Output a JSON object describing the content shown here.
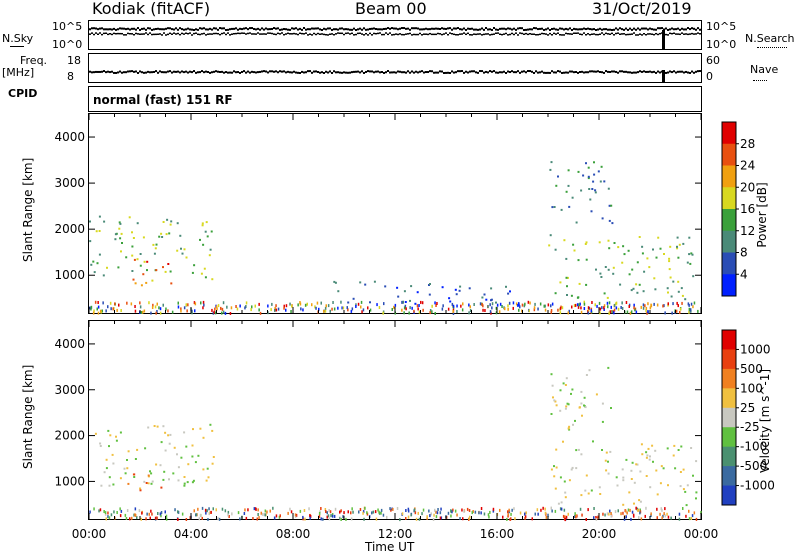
{
  "header": {
    "station": "Kodiak (fitACF)",
    "beam": "Beam 00",
    "date": "31/Oct/2019"
  },
  "side_labels": {
    "nsky": "N.Sky",
    "nsky_hi": "10^5",
    "nsky_lo": "10^0",
    "nsearch": "N.Search",
    "nsearch_hi": "10^5",
    "nsearch_lo": "10^0",
    "freq": "Freq.",
    "freq_unit": "[MHz]",
    "freq_hi": "18",
    "freq_lo": "8",
    "nave": "Nave",
    "nave_hi": "60",
    "nave_lo": "0",
    "cpid": "CPID",
    "mode": "normal (fast) 151 RF"
  },
  "chart_data": [
    {
      "type": "heatmap",
      "name": "power",
      "ylabel": "Slant Range [km]",
      "ylim": [
        180,
        4500
      ],
      "yticks": [
        1000,
        2000,
        3000,
        4000
      ],
      "colorbar_label": "Power [dB]",
      "colorbar_ticks": [
        "28",
        "24",
        "20",
        "16",
        "12",
        "8",
        "4"
      ],
      "colors": [
        "#0020ff",
        "#2a4db5",
        "#4a8a78",
        "#3aa03a",
        "#d8d820",
        "#f0a010",
        "#e85010",
        "#e00000"
      ],
      "regions": [
        {
          "t0": 0.0,
          "t1": 5.0,
          "r0": 900,
          "r1": 2300,
          "level": 3
        },
        {
          "t0": 1.5,
          "t1": 3.2,
          "r0": 800,
          "r1": 1400,
          "level": 6
        },
        {
          "t0": 18.0,
          "t1": 23.8,
          "r0": 500,
          "r1": 1900,
          "level": 3
        },
        {
          "t0": 18.0,
          "t1": 20.5,
          "r0": 2100,
          "r1": 3500,
          "level": 2
        },
        {
          "t0": 9.5,
          "t1": 16.5,
          "r0": 400,
          "r1": 900,
          "level": 1
        }
      ]
    },
    {
      "type": "heatmap",
      "name": "velocity",
      "ylabel": "Slant Range [km]",
      "ylim": [
        180,
        4500
      ],
      "yticks": [
        1000,
        2000,
        3000,
        4000
      ],
      "colorbar_label": "Velocity [m s^-1]",
      "colorbar_ticks": [
        "1000",
        "500",
        "100",
        "25",
        "-25",
        "-100",
        "-500",
        "-1000"
      ],
      "colors": [
        "#2040c0",
        "#3a6aa0",
        "#4a9070",
        "#60c040",
        "#c8c8c0",
        "#f0c040",
        "#f08020",
        "#e84010",
        "#e00000"
      ],
      "regions": [
        {
          "t0": 0.0,
          "t1": 5.0,
          "r0": 900,
          "r1": 2300,
          "level": 4
        },
        {
          "t0": 1.5,
          "t1": 3.0,
          "r0": 800,
          "r1": 1400,
          "level": 6
        },
        {
          "t0": 18.0,
          "t1": 23.8,
          "r0": 500,
          "r1": 1900,
          "level": 4
        },
        {
          "t0": 18.0,
          "t1": 20.5,
          "r0": 2100,
          "r1": 3500,
          "level": 4
        }
      ]
    }
  ],
  "xaxis": {
    "label": "Time UT",
    "ticks": [
      "00:00",
      "04:00",
      "08:00",
      "12:00",
      "16:00",
      "20:00",
      "00:00"
    ]
  }
}
